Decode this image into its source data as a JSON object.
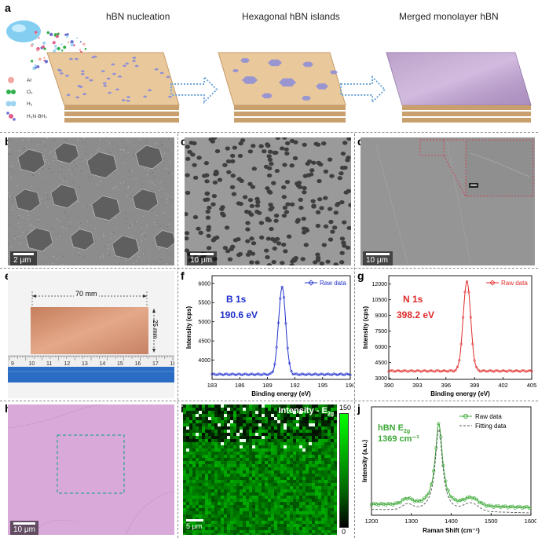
{
  "panel_labels": {
    "a": "a",
    "b": "b",
    "c": "c",
    "d": "d",
    "e": "e",
    "f": "f",
    "g": "g",
    "h": "h",
    "i": "i",
    "j": "j"
  },
  "panel_a": {
    "stages": [
      "hBN nucleation",
      "Hexagonal hBN islands",
      "Merged monolayer hBN"
    ],
    "legend": [
      "Ar",
      "O₂",
      "H₂",
      "H₃N·BH₃"
    ],
    "colors": {
      "copper": "#e9c89b",
      "island": "#8f8fd6",
      "arrow": "#6fa6d8"
    }
  },
  "panel_b": {
    "scale": "2 μm"
  },
  "panel_c": {
    "scale": "10 μm"
  },
  "panel_d": {
    "scale": "10 μm",
    "inset_scale": "—"
  },
  "panel_e": {
    "width_label": "70 mm",
    "height_label": "25 mm",
    "ruler_numbers": [
      "9",
      "10",
      "11",
      "12",
      "13",
      "14",
      "15",
      "16",
      "17",
      "18"
    ]
  },
  "panel_h": {
    "scale": "10 μm"
  },
  "panel_i": {
    "title": "Intensity - E",
    "title_sub": "2g",
    "scale": "5 μm",
    "colorbar_max": "150",
    "colorbar_min": "0"
  },
  "chart_data": [
    {
      "id": "f",
      "type": "line",
      "title": "B 1s",
      "annotation": "190.6 eV",
      "xlabel": "Binding energy (eV)",
      "ylabel": "Intensity (cps)",
      "xlim": [
        183,
        198
      ],
      "ylim": [
        3500,
        6200
      ],
      "xticks": [
        "183",
        "186",
        "189",
        "192",
        "195",
        "198"
      ],
      "yticks": [
        "4000",
        "4500",
        "5000",
        "5500",
        "6000"
      ],
      "legend": "Raw data",
      "color": "#1f2fcc",
      "peak_x": 190.6,
      "peak_y": 5900,
      "baseline": 3630,
      "width": 0.55
    },
    {
      "id": "g",
      "type": "line",
      "title": "N 1s",
      "annotation": "398.2 eV",
      "xlabel": "Binding energy (eV)",
      "ylabel": "Intensity (cps)",
      "xlim": [
        390,
        405
      ],
      "ylim": [
        2900,
        12800
      ],
      "xticks": [
        "390",
        "393",
        "396",
        "399",
        "402",
        "405"
      ],
      "yticks": [
        "3000",
        "4500",
        "6000",
        "7500",
        "9000",
        "10500",
        "12000"
      ],
      "legend": "Raw data",
      "color": "#e02a2a",
      "peak_x": 398.2,
      "peak_y": 12300,
      "baseline": 3700,
      "width": 0.55
    },
    {
      "id": "j",
      "type": "line",
      "title": "hBN E",
      "title_sub": "2g",
      "annotation": "1369 cm⁻¹",
      "xlabel": "Raman Shift (cm⁻¹)",
      "ylabel": "Intensity (a.u.)",
      "xlim": [
        1200,
        1600
      ],
      "ylim": [
        0,
        1
      ],
      "xticks": [
        "1200",
        "1300",
        "1400",
        "1500",
        "1600"
      ],
      "series": [
        {
          "name": "Raw data",
          "color": "#3aa835"
        },
        {
          "name": "Fitting data",
          "color": "#555555"
        }
      ],
      "peak_x": 1369
    }
  ]
}
